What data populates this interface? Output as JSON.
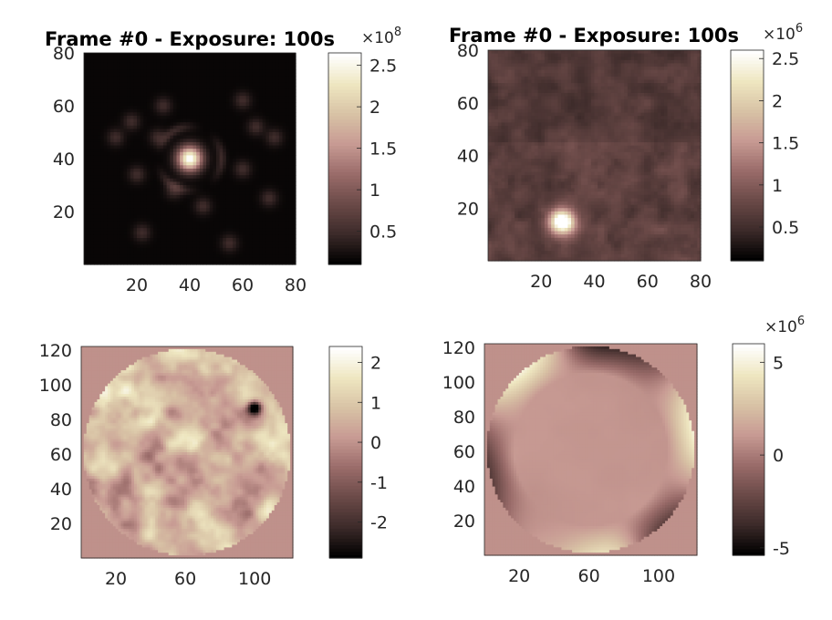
{
  "colormap": [
    "#000000",
    "#3d2b2a",
    "#6b4a48",
    "#9a6c6a",
    "#c79a93",
    "#d8c2a5",
    "#eee6c0",
    "#ffffff"
  ],
  "chart_data": [
    {
      "type": "heatmap",
      "title": "Frame #0 - Exposure: 100s",
      "xlim": [
        0,
        80
      ],
      "ylim": [
        0,
        80
      ],
      "xticks": [
        20,
        40,
        60,
        80
      ],
      "yticks": [
        20,
        40,
        60,
        80
      ],
      "colorbar": {
        "min": 0.1,
        "max": 2.65,
        "ticks": [
          0.5,
          1,
          1.5,
          2,
          2.5
        ],
        "tick_labels": [
          "0.5",
          "1",
          "1.5",
          "2",
          "2.5"
        ],
        "exponent_base": "×10",
        "exponent_power": "8"
      },
      "background": 0.02,
      "peaks": [
        {
          "x": 40,
          "y": 40,
          "value": 1.0,
          "sigma": 3.2
        }
      ],
      "ring": {
        "x": 40,
        "y": 40,
        "radius": 12,
        "value": 0.12
      },
      "speckles": [
        [
          12,
          48
        ],
        [
          28,
          48
        ],
        [
          20,
          34
        ],
        [
          34,
          28
        ],
        [
          45,
          22
        ],
        [
          60,
          36
        ],
        [
          22,
          12
        ],
        [
          55,
          8
        ],
        [
          72,
          48
        ],
        [
          70,
          25
        ],
        [
          60,
          62
        ],
        [
          30,
          60
        ],
        [
          65,
          52
        ],
        [
          18,
          54
        ]
      ]
    },
    {
      "type": "heatmap",
      "title": "Frame #0 - Exposure: 100s",
      "xlim": [
        0,
        80
      ],
      "ylim": [
        0,
        80
      ],
      "xticks": [
        20,
        40,
        60,
        80
      ],
      "yticks": [
        20,
        40,
        60,
        80
      ],
      "colorbar": {
        "min": 0.1,
        "max": 2.6,
        "ticks": [
          0.5,
          1,
          1.5,
          2,
          2.5
        ],
        "tick_labels": [
          "0.5",
          "1",
          "1.5",
          "2",
          "2.5"
        ],
        "exponent_base": "×10",
        "exponent_power": "6"
      },
      "background": 0.12,
      "peaks": [
        {
          "x": 28,
          "y": 15,
          "value": 1.0,
          "sigma": 3.0
        }
      ]
    },
    {
      "type": "heatmap",
      "title": "",
      "xlim": [
        0,
        122
      ],
      "ylim": [
        0,
        122
      ],
      "xticks": [
        20,
        60,
        100
      ],
      "yticks": [
        20,
        40,
        60,
        80,
        100,
        120
      ],
      "colorbar": {
        "min": -2.9,
        "max": 2.4,
        "ticks": [
          -2,
          -1,
          0,
          1,
          2
        ],
        "tick_labels": [
          "-2",
          "-1",
          "0",
          "1",
          "2"
        ]
      },
      "circular_mask": true,
      "outside_value": 0
    },
    {
      "type": "heatmap",
      "title": "",
      "xlim": [
        0,
        122
      ],
      "ylim": [
        0,
        122
      ],
      "xticks": [
        20,
        60,
        100
      ],
      "yticks": [
        20,
        40,
        60,
        80,
        100,
        120
      ],
      "colorbar": {
        "min": -5.4,
        "max": 6,
        "ticks": [
          -5,
          0,
          5
        ],
        "tick_labels": [
          "-5",
          "0",
          "5"
        ],
        "exponent_base": "×10",
        "exponent_power": "6"
      },
      "circular_mask": true,
      "outside_value": 0
    }
  ]
}
